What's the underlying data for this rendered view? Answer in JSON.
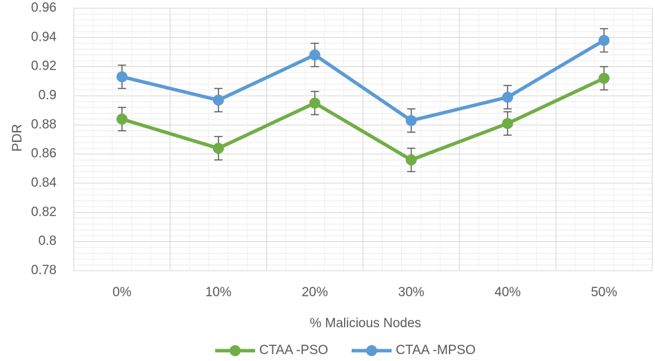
{
  "chart_data": {
    "type": "line",
    "title": "",
    "xlabel": "% Malicious Nodes",
    "ylabel": "PDR",
    "categories": [
      "0%",
      "10%",
      "20%",
      "30%",
      "40%",
      "50%"
    ],
    "ylim": [
      0.78,
      0.96
    ],
    "yticks": [
      0.78,
      0.8,
      0.82,
      0.84,
      0.86,
      0.88,
      0.9,
      0.92,
      0.94,
      0.96
    ],
    "ytick_labels": [
      "0.78",
      "0.8",
      "0.82",
      "0.84",
      "0.86",
      "0.88",
      "0.9",
      "0.92",
      "0.94",
      "0.96"
    ],
    "minor_step": 0.004,
    "grid": true,
    "legend_position": "bottom",
    "series": [
      {
        "name": "CTAA -PSO",
        "color": "#70ad47",
        "values": [
          0.884,
          0.864,
          0.895,
          0.856,
          0.881,
          0.912
        ],
        "error": [
          0.008,
          0.008,
          0.008,
          0.008,
          0.008,
          0.008
        ]
      },
      {
        "name": "CTAA -MPSO",
        "color": "#5b9bd5",
        "values": [
          0.913,
          0.897,
          0.928,
          0.883,
          0.899,
          0.938
        ],
        "error": [
          0.008,
          0.008,
          0.008,
          0.008,
          0.008,
          0.008
        ]
      }
    ]
  }
}
